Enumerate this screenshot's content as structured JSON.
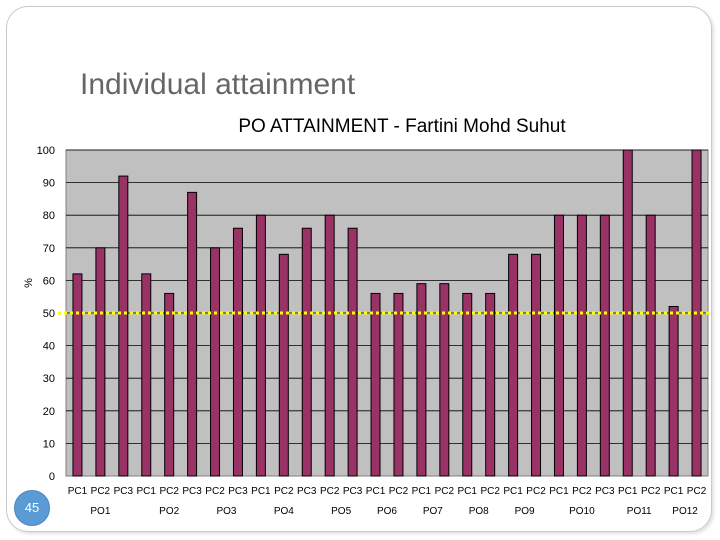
{
  "slide": {
    "title": "Individual attainment",
    "page_number": "45"
  },
  "colors": {
    "bar": "#993366",
    "plot_bg": "#c0c0c0",
    "threshold": "#ffff00"
  },
  "chart_data": {
    "type": "bar",
    "title": "PO ATTAINMENT - Fartini Mohd Suhut",
    "xlabel": "",
    "ylabel": "%",
    "ylim": [
      0,
      100
    ],
    "yticks": [
      0,
      10,
      20,
      30,
      40,
      50,
      60,
      70,
      80,
      90,
      100
    ],
    "grid": true,
    "threshold": 50,
    "categories": [
      "PC1",
      "PC2",
      "PC3",
      "PC1",
      "PC2",
      "PC3",
      "PC2",
      "PC3",
      "PC1",
      "PC2",
      "PC3",
      "PC2",
      "PC3",
      "PC1",
      "PC2",
      "PC1",
      "PC2",
      "PC1",
      "PC2",
      "PC1",
      "PC2",
      "PC1",
      "PC2",
      "PC3",
      "PC1",
      "PC2",
      "PC1",
      "PC2"
    ],
    "values": [
      62,
      70,
      92,
      62,
      56,
      87,
      70,
      76,
      80,
      68,
      76,
      80,
      76,
      56,
      56,
      59,
      59,
      56,
      56,
      68,
      68,
      80,
      80,
      80,
      100,
      80,
      52,
      100
    ],
    "groups": [
      {
        "label": "PO1",
        "count": 3
      },
      {
        "label": "PO2",
        "count": 3
      },
      {
        "label": "PO3",
        "count": 2
      },
      {
        "label": "PO4",
        "count": 3
      },
      {
        "label": "PO5",
        "count": 2
      },
      {
        "label": "PO6",
        "count": 2
      },
      {
        "label": "PO7",
        "count": 2
      },
      {
        "label": "PO8",
        "count": 2
      },
      {
        "label": "PO9",
        "count": 2
      },
      {
        "label": "PO10",
        "count": 3
      },
      {
        "label": "PO11",
        "count": 2
      },
      {
        "label": "PO12",
        "count": 2
      }
    ]
  }
}
